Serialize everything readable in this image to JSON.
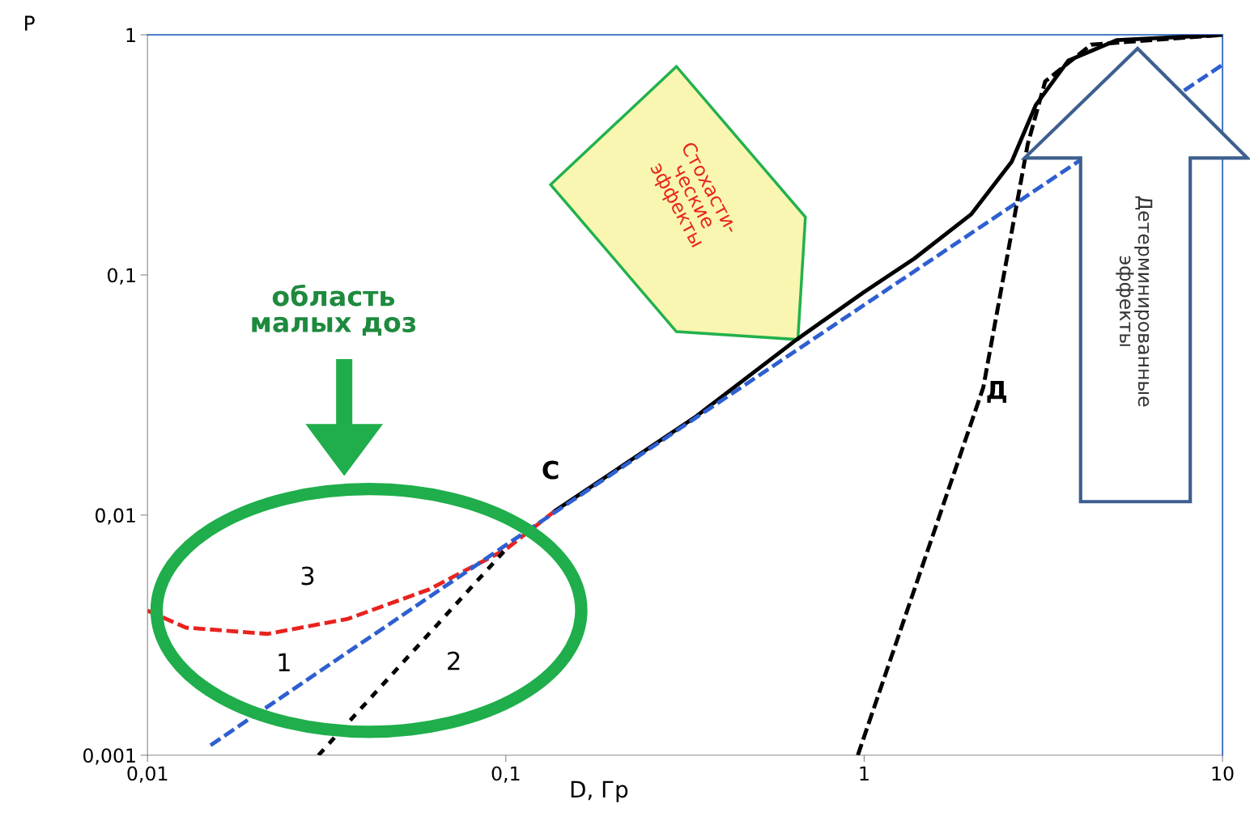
{
  "chart_data": {
    "type": "line",
    "xlabel": "D, Гр",
    "ylabel": "P",
    "log": "xy",
    "xlim": [
      0.01,
      10
    ],
    "ylim": [
      0.001,
      1
    ],
    "xticks": [
      {
        "value": 0.01,
        "label": "0,01"
      },
      {
        "value": 0.1,
        "label": "0,1"
      },
      1,
      10
    ],
    "yticks": [
      {
        "value": 0.001,
        "label": "0,001"
      },
      {
        "value": 0.01,
        "label": "0,01"
      },
      {
        "value": 0.1,
        "label": "0,1"
      },
      1
    ],
    "grid": false,
    "series": [
      {
        "color": "#000000",
        "line_style": "solid",
        "x": [
          0.137,
          0.34,
          0.65,
          1.0,
          1.38,
          1.99,
          2.58,
          3.01,
          3.71,
          5.06,
          10
        ],
        "values": [
          0.0104,
          0.0258,
          0.054,
          0.085,
          0.117,
          0.179,
          0.296,
          0.509,
          0.78,
          0.95,
          1
        ]
      },
      {
        "color": "#e8231f",
        "line_style": "dashed",
        "x": [
          0.01,
          0.0128,
          0.0216,
          0.0363,
          0.061,
          0.1,
          0.137
        ],
        "values": [
          0.004,
          0.0034,
          0.0032,
          0.0037,
          0.0049,
          0.0072,
          0.0104
        ]
      },
      {
        "color": "#2e5fd0",
        "line_style": "dashed",
        "x": [
          0.015,
          0.1,
          1,
          10
        ],
        "values": [
          0.0011,
          0.0075,
          0.075,
          0.75
        ]
      },
      {
        "color": "#000000",
        "line_style": "dotted",
        "x": [
          0.03,
          0.1
        ],
        "values": [
          0.001,
          0.0072
        ]
      },
      {
        "color": "#000000",
        "line_style": "dashed",
        "x": [
          0.96,
          2.15,
          2.86,
          3.2,
          4.3,
          10
        ],
        "values": [
          0.001,
          0.034,
          0.35,
          0.64,
          0.91,
          1
        ]
      }
    ],
    "annotations": [
      "С",
      "Д",
      "3",
      "1",
      "2",
      "область\nмалых доз",
      "Стохасти-\nческие\nэффекты",
      "Детерминированные\nэффекты"
    ]
  }
}
